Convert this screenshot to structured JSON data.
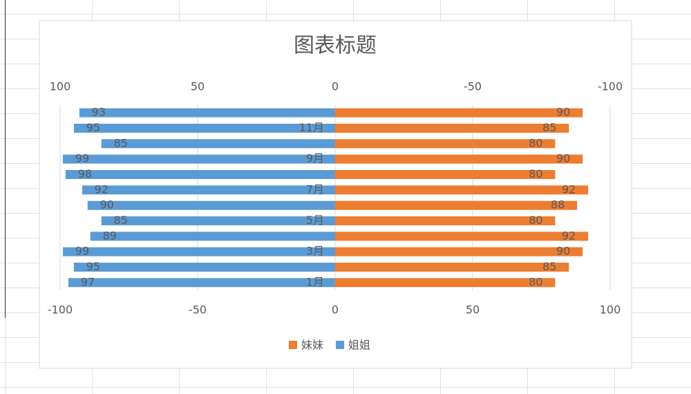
{
  "chart_data": {
    "type": "butterfly-bar",
    "title": "图表标题",
    "categories": [
      "1月",
      null,
      "3月",
      null,
      "5月",
      null,
      "7月",
      null,
      "9月",
      null,
      "11月",
      null
    ],
    "series": [
      {
        "name": "妹妹",
        "color": "#ed7d31",
        "axis": "x",
        "values": [
          80,
          85,
          90,
          92,
          80,
          88,
          92,
          80,
          90,
          80,
          85,
          90
        ]
      },
      {
        "name": "姐姐",
        "color": "#5b9bd5",
        "axis": "x2",
        "values": [
          97,
          95,
          99,
          89,
          85,
          90,
          92,
          98,
          99,
          85,
          95,
          93
        ]
      }
    ],
    "xlim": [
      -100,
      100
    ],
    "xticks": [
      -100,
      -50,
      0,
      50,
      100
    ],
    "x2lim": [
      100,
      -100
    ],
    "x2ticks": [
      100,
      50,
      0,
      -50,
      -100
    ],
    "grid": true,
    "legend": "bottom"
  }
}
